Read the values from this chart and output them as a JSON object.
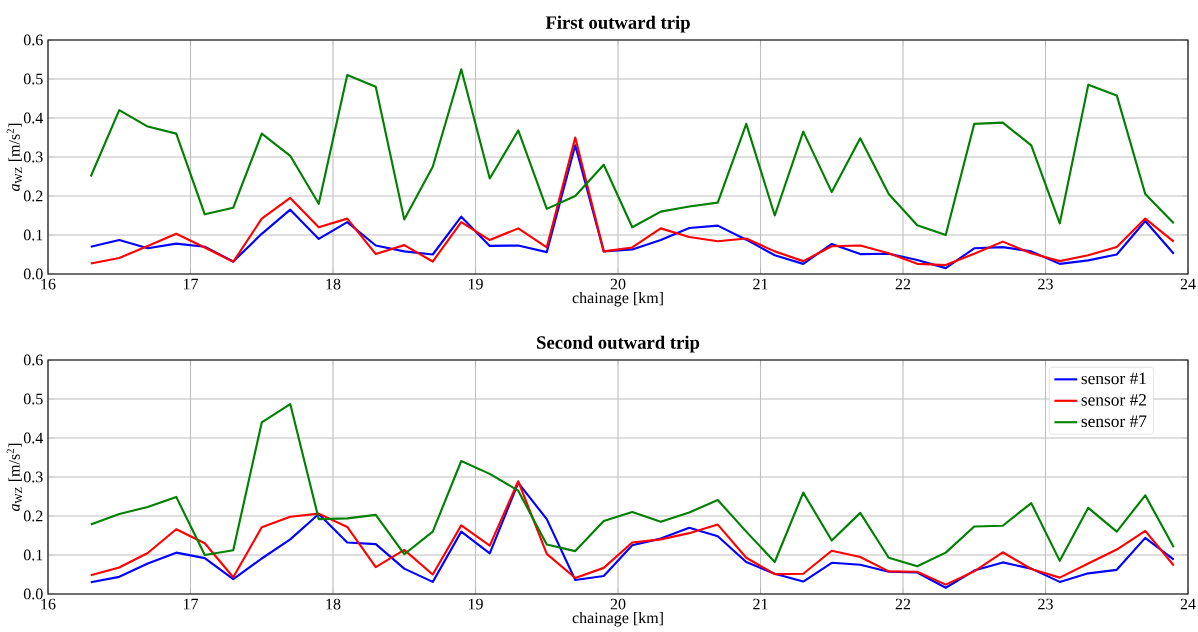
{
  "chart_data": [
    {
      "type": "line",
      "title": "First outward trip",
      "xlabel": "chainage [km]",
      "ylabel": "*a*$_{WZ}$ [m/s$^{2}$]",
      "x": [
        16.3,
        16.5,
        16.7,
        16.9,
        17.1,
        17.3,
        17.5,
        17.7,
        17.9,
        18.1,
        18.3,
        18.5,
        18.7,
        18.9,
        19.1,
        19.3,
        19.5,
        19.7,
        19.9,
        20.1,
        20.3,
        20.5,
        20.7,
        20.9,
        21.1,
        21.3,
        21.5,
        21.7,
        21.9,
        22.1,
        22.3,
        22.5,
        22.7,
        22.9,
        23.1,
        23.3,
        23.5,
        23.7,
        23.9
      ],
      "xlim": [
        16,
        24
      ],
      "xticks": [
        16,
        17,
        18,
        19,
        20,
        21,
        22,
        23,
        24
      ],
      "ylim": [
        0,
        0.6
      ],
      "yticks": [
        {
          "value": 0,
          "label": "0.0"
        },
        {
          "value": 0.1,
          "label": "0.1"
        },
        {
          "value": 0.2,
          "label": "0.2"
        },
        {
          "value": 0.3,
          "label": "0.3"
        },
        {
          "value": 0.4,
          "label": "0.4"
        },
        {
          "value": 0.5,
          "label": "0.5"
        },
        {
          "value": 0.6,
          "label": "0.6"
        }
      ],
      "grid": true,
      "legend": false,
      "line_style": "solid",
      "marker": "none",
      "series": [
        {
          "color": "#0000ff",
          "values": [
            0.07,
            0.087,
            0.066,
            0.078,
            0.07,
            0.032,
            0.103,
            0.165,
            0.09,
            0.133,
            0.073,
            0.058,
            0.05,
            0.147,
            0.072,
            0.073,
            0.056,
            0.33,
            0.058,
            0.063,
            0.087,
            0.118,
            0.124,
            0.088,
            0.048,
            0.026,
            0.077,
            0.051,
            0.052,
            0.036,
            0.015,
            0.066,
            0.069,
            0.058,
            0.026,
            0.035,
            0.05,
            0.136,
            0.052
          ]
        },
        {
          "color": "#ff0000",
          "values": [
            0.027,
            0.041,
            0.072,
            0.103,
            0.068,
            0.031,
            0.142,
            0.195,
            0.12,
            0.142,
            0.051,
            0.074,
            0.032,
            0.133,
            0.087,
            0.117,
            0.068,
            0.35,
            0.058,
            0.068,
            0.117,
            0.095,
            0.084,
            0.091,
            0.058,
            0.033,
            0.071,
            0.073,
            0.053,
            0.026,
            0.023,
            0.052,
            0.083,
            0.053,
            0.033,
            0.048,
            0.069,
            0.142,
            0.083
          ]
        },
        {
          "color": "#008000",
          "values": [
            0.25,
            0.42,
            0.378,
            0.36,
            0.153,
            0.17,
            0.36,
            0.303,
            0.18,
            0.51,
            0.48,
            0.14,
            0.275,
            0.525,
            0.245,
            0.368,
            0.167,
            0.2,
            0.28,
            0.12,
            0.16,
            0.173,
            0.183,
            0.385,
            0.15,
            0.365,
            0.21,
            0.348,
            0.205,
            0.125,
            0.1,
            0.385,
            0.388,
            0.33,
            0.13,
            0.485,
            0.458,
            0.205,
            0.13
          ]
        }
      ]
    },
    {
      "type": "line",
      "title": "Second outward trip",
      "xlabel": "chainage [km]",
      "ylabel": "*a*$_{WZ}$ [m/s$^{2}$]",
      "x": [
        16.3,
        16.5,
        16.7,
        16.9,
        17.1,
        17.3,
        17.5,
        17.7,
        17.9,
        18.1,
        18.3,
        18.5,
        18.7,
        18.9,
        19.1,
        19.3,
        19.5,
        19.7,
        19.9,
        20.1,
        20.3,
        20.5,
        20.7,
        20.9,
        21.1,
        21.3,
        21.5,
        21.7,
        21.9,
        22.1,
        22.3,
        22.5,
        22.7,
        22.9,
        23.1,
        23.3,
        23.5,
        23.7,
        23.9
      ],
      "xlim": [
        16,
        24
      ],
      "xticks": [
        16,
        17,
        18,
        19,
        20,
        21,
        22,
        23,
        24
      ],
      "ylim": [
        0,
        0.6
      ],
      "yticks": [
        {
          "value": 0,
          "label": "0.0"
        },
        {
          "value": 0.1,
          "label": "0.1"
        },
        {
          "value": 0.2,
          "label": "0.2"
        },
        {
          "value": 0.3,
          "label": "0.3"
        },
        {
          "value": 0.4,
          "label": "0.4"
        },
        {
          "value": 0.5,
          "label": "0.5"
        },
        {
          "value": 0.6,
          "label": "0.6"
        }
      ],
      "grid": true,
      "legend": "top right",
      "line_style": "solid",
      "marker": "none",
      "series": [
        {
          "name": "sensor #1",
          "color": "#0000ff",
          "values": [
            0.03,
            0.044,
            0.078,
            0.106,
            0.092,
            0.038,
            0.091,
            0.14,
            0.205,
            0.132,
            0.128,
            0.065,
            0.031,
            0.16,
            0.104,
            0.285,
            0.192,
            0.036,
            0.046,
            0.125,
            0.142,
            0.17,
            0.148,
            0.082,
            0.052,
            0.032,
            0.08,
            0.075,
            0.057,
            0.055,
            0.016,
            0.06,
            0.081,
            0.065,
            0.031,
            0.053,
            0.062,
            0.144,
            0.088
          ]
        },
        {
          "name": "sensor #2",
          "color": "#ff0000",
          "values": [
            0.048,
            0.068,
            0.105,
            0.166,
            0.13,
            0.043,
            0.171,
            0.198,
            0.206,
            0.172,
            0.069,
            0.113,
            0.05,
            0.176,
            0.124,
            0.289,
            0.103,
            0.041,
            0.067,
            0.132,
            0.14,
            0.156,
            0.178,
            0.093,
            0.051,
            0.052,
            0.111,
            0.095,
            0.058,
            0.057,
            0.024,
            0.058,
            0.107,
            0.064,
            0.042,
            0.078,
            0.114,
            0.162,
            0.073
          ]
        },
        {
          "name": "sensor #7",
          "color": "#008000",
          "values": [
            0.178,
            0.205,
            0.223,
            0.249,
            0.1,
            0.112,
            0.44,
            0.487,
            0.192,
            0.194,
            0.203,
            0.102,
            0.16,
            0.341,
            0.308,
            0.265,
            0.127,
            0.11,
            0.187,
            0.21,
            0.185,
            0.209,
            0.241,
            0.16,
            0.082,
            0.26,
            0.137,
            0.208,
            0.093,
            0.071,
            0.106,
            0.173,
            0.175,
            0.233,
            0.085,
            0.221,
            0.16,
            0.253,
            0.12
          ]
        }
      ]
    }
  ]
}
